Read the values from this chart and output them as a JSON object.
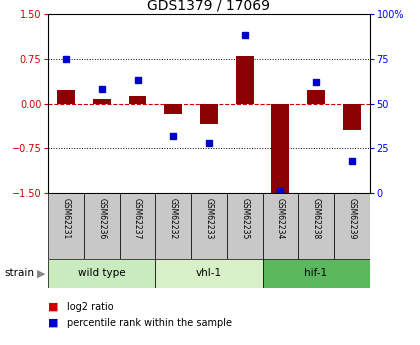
{
  "title": "GDS1379 / 17069",
  "samples": [
    "GSM62231",
    "GSM62236",
    "GSM62237",
    "GSM62232",
    "GSM62233",
    "GSM62235",
    "GSM62234",
    "GSM62238",
    "GSM62239"
  ],
  "log2_ratio": [
    0.22,
    0.07,
    0.13,
    -0.18,
    -0.35,
    0.8,
    -1.5,
    0.22,
    -0.45
  ],
  "percentile_rank": [
    75,
    58,
    63,
    32,
    28,
    88,
    1,
    62,
    18
  ],
  "groups": [
    {
      "label": "wild type",
      "indices": [
        0,
        1,
        2
      ],
      "color": "#c8ebc0"
    },
    {
      "label": "vhl-1",
      "indices": [
        3,
        4,
        5
      ],
      "color": "#d8f0c8"
    },
    {
      "label": "hif-1",
      "indices": [
        6,
        7,
        8
      ],
      "color": "#5cb85c"
    }
  ],
  "ylim_left": [
    -1.5,
    1.5
  ],
  "ylim_right": [
    0,
    100
  ],
  "yticks_left": [
    -1.5,
    -0.75,
    0,
    0.75,
    1.5
  ],
  "yticks_right": [
    0,
    25,
    50,
    75,
    100
  ],
  "bar_color": "#8b0000",
  "dot_color": "#0000cc",
  "hline_color": "#cc0000",
  "dotline_color": "#000000",
  "bg_color": "#ffffff",
  "plot_bg": "#ffffff",
  "legend_items": [
    "log2 ratio",
    "percentile rank within the sample"
  ],
  "legend_colors": [
    "#cc0000",
    "#0000cc"
  ]
}
